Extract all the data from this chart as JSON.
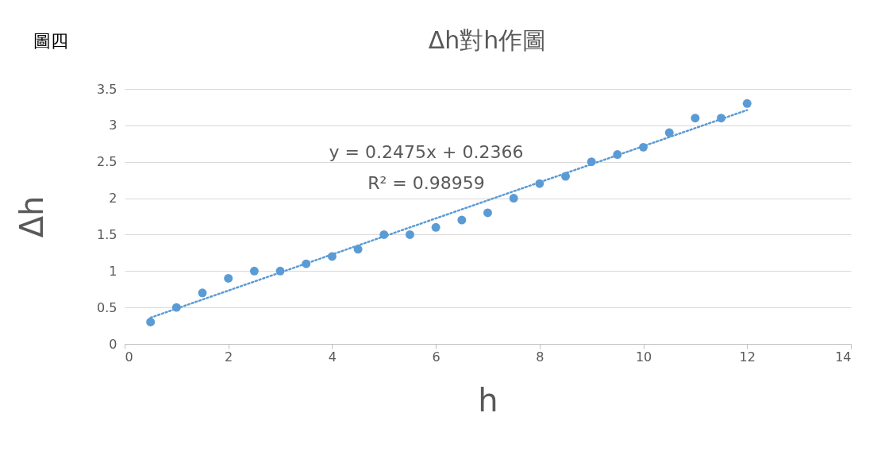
{
  "chart_data": {
    "type": "scatter",
    "title": "Δh對h作圖",
    "xlabel": "h",
    "ylabel": "Δh",
    "annotations": [
      "圖四",
      "y = 0.2475x + 0.2366",
      "R² = 0.98959"
    ],
    "xlim": [
      0,
      14
    ],
    "ylim": [
      0,
      3.5
    ],
    "xticks": [
      0,
      2,
      4,
      6,
      8,
      10,
      12,
      14
    ],
    "yticks": [
      0,
      0.5,
      1,
      1.5,
      2,
      2.5,
      3,
      3.5
    ],
    "grid": "y",
    "marker": "circle",
    "series": [
      {
        "color": "#5b9bd5",
        "x": [
          0.5,
          1,
          1.5,
          2,
          2.5,
          3,
          3.5,
          4,
          4.5,
          5,
          5.5,
          6,
          6.5,
          7,
          7.5,
          8,
          8.5,
          9,
          9.5,
          10,
          10.5,
          11,
          11.5,
          12
        ],
        "values": [
          0.3,
          0.5,
          0.7,
          0.9,
          1.0,
          1.0,
          1.1,
          1.2,
          1.3,
          1.5,
          1.5,
          1.6,
          1.7,
          1.8,
          2.0,
          2.2,
          2.3,
          2.5,
          2.6,
          2.7,
          2.9,
          3.1,
          3.1,
          3.3
        ]
      },
      {
        "type": "line",
        "marker": "none",
        "line_style": "dotted",
        "color": "#5b9bd5",
        "x": [
          0.5,
          12
        ],
        "values": [
          0.36,
          3.21
        ]
      }
    ]
  }
}
